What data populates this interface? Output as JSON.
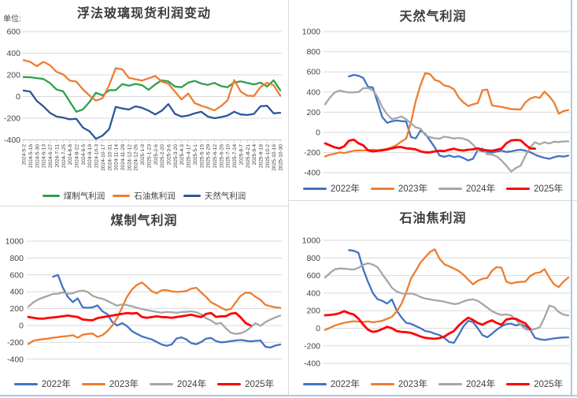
{
  "chart_data": [
    {
      "id": "float-glass-spot-profit",
      "type": "line",
      "title": "浮法玻璃现货利润变动",
      "unit_label": "单位:",
      "ylim": [
        -400,
        600
      ],
      "y_ticks": [
        600,
        400,
        200,
        0,
        -200,
        -400
      ],
      "grid": true,
      "legend_position": "bottom",
      "x_labels": [
        "2024-5-2",
        "2024-5-16",
        "2024-5-30",
        "2024-6-13",
        "2024-6-27",
        "2024-7-11",
        "2024-7-25",
        "2024-8-8",
        "2024-8-22",
        "2024-9-5",
        "2024-9-19",
        "2024-10-3",
        "2024-10-17",
        "2024-10-31",
        "2024-11-14",
        "2024-11-28",
        "2024-12-12",
        "2024-12-26",
        "2025-1-9",
        "2025-1-23",
        "2025-2-6",
        "2025-2-20",
        "2025-3-6",
        "2025-3-20",
        "2025-4-3",
        "2025-4-17",
        "2025-5-1",
        "2025-5-15",
        "2025-5-29",
        "2025-6-12",
        "2025-6-26",
        "2025-7-10",
        "2025-7-24",
        "2025-8-7",
        "2025-8-21",
        "2025-9-4",
        "2025-9-18",
        "2025-10-2",
        "2025-10-16",
        "2025-10-30"
      ],
      "series": [
        {
          "name": "煤制气利润",
          "color": "#2EA04D",
          "values": [
            180,
            178,
            170,
            162,
            125,
            65,
            48,
            -45,
            -140,
            -120,
            -50,
            35,
            10,
            58,
            60,
            115,
            100,
            116,
            105,
            62,
            112,
            150,
            140,
            92,
            86,
            128,
            145,
            120,
            108,
            126,
            96,
            86,
            130,
            140,
            126,
            112,
            128,
            92,
            150,
            58
          ]
        },
        {
          "name": "石油焦利润",
          "color": "#ED7D31",
          "values": [
            335,
            320,
            280,
            320,
            290,
            228,
            205,
            148,
            138,
            68,
            10,
            -38,
            -15,
            105,
            262,
            250,
            172,
            160,
            148,
            168,
            190,
            138,
            118,
            45,
            -28,
            28,
            -60,
            -85,
            -105,
            -128,
            -88,
            -35,
            152,
            45,
            8,
            5,
            88,
            128,
            105,
            8
          ]
        },
        {
          "name": "天然气利润",
          "color": "#2F5597",
          "values": [
            55,
            45,
            -40,
            -90,
            -150,
            -185,
            -195,
            -210,
            -205,
            -285,
            -320,
            -390,
            -360,
            -300,
            -95,
            -110,
            -120,
            -90,
            -105,
            -130,
            -165,
            -130,
            -70,
            -160,
            -185,
            -175,
            -155,
            -140,
            -185,
            -200,
            -190,
            -175,
            -140,
            -165,
            -170,
            -160,
            -90,
            -85,
            -155,
            -150
          ]
        }
      ]
    },
    {
      "id": "natural-gas-profit",
      "type": "line",
      "title": "天然气利润",
      "ylim": [
        -400,
        1000
      ],
      "y_ticks": [
        1000,
        800,
        600,
        400,
        200,
        0,
        -200,
        -400
      ],
      "grid": true,
      "legend_position": "bottom",
      "series": [
        {
          "name": "2022年",
          "color": "#4472C4",
          "values": [
            null,
            null,
            null,
            null,
            null,
            555,
            570,
            562,
            540,
            452,
            445,
            300,
            150,
            95,
            110,
            118,
            112,
            108,
            -45,
            -60,
            18,
            -15,
            -80,
            -150,
            -230,
            -242,
            -228,
            -244,
            -236,
            -254,
            -278,
            -262,
            -175,
            -185,
            -195,
            -200,
            -190,
            -182,
            -194,
            -188,
            -178,
            -172,
            -182,
            -195,
            -220,
            -238,
            -252,
            -262,
            -246,
            -234,
            -240,
            -230
          ]
        },
        {
          "name": "2023年",
          "color": "#ED7D31",
          "values": [
            -238,
            -220,
            -212,
            -198,
            -205,
            -192,
            -182,
            -178,
            -180,
            -176,
            -172,
            -178,
            -170,
            -162,
            -148,
            -125,
            -90,
            -62,
            100,
            310,
            470,
            588,
            578,
            520,
            505,
            465,
            455,
            428,
            348,
            298,
            262,
            278,
            290,
            418,
            425,
            268,
            260,
            252,
            242,
            232,
            228,
            228,
            298,
            335,
            352,
            342,
            405,
            358,
            298,
            185,
            212,
            222
          ]
        },
        {
          "name": "2024年",
          "color": "#A6A6A6",
          "values": [
            278,
            345,
            395,
            415,
            405,
            395,
            398,
            400,
            438,
            440,
            418,
            352,
            248,
            180,
            132,
            142,
            158,
            130,
            90,
            50,
            38,
            -28,
            -48,
            -58,
            -62,
            -42,
            -50,
            -60,
            -55,
            -62,
            -80,
            -120,
            -178,
            -158,
            -218,
            -220,
            -238,
            -278,
            -330,
            -388,
            -352,
            -330,
            -232,
            -148,
            -98,
            -118,
            -98,
            -110,
            -92,
            -95,
            -90,
            -88
          ]
        },
        {
          "name": "2025年",
          "color": "#FF0000",
          "values": [
            -108,
            -128,
            -148,
            -158,
            -138,
            -82,
            -72,
            -108,
            -128,
            -178,
            -188,
            -182,
            -178,
            -170,
            -158,
            -148,
            -145,
            -158,
            -162,
            -168,
            -188,
            -198,
            -198,
            -188,
            -182,
            -185,
            -172,
            -162,
            -175,
            -180,
            -172,
            -168,
            -158,
            -172,
            -178,
            -182,
            -172,
            -162,
            -108,
            -80,
            -75,
            -78,
            -122,
            -158,
            -162,
            null,
            null,
            null,
            null,
            null,
            null,
            null
          ]
        }
      ]
    },
    {
      "id": "coal-gas-profit",
      "type": "line",
      "title": "煤制气利润",
      "ylim": [
        -400,
        1000
      ],
      "y_ticks": [
        1000,
        800,
        600,
        400,
        200,
        0,
        -200,
        -400
      ],
      "grid": true,
      "legend_position": "bottom",
      "series": [
        {
          "name": "2022年",
          "color": "#4472C4",
          "values": [
            null,
            null,
            null,
            null,
            null,
            578,
            600,
            448,
            338,
            278,
            322,
            215,
            210,
            215,
            238,
            168,
            135,
            40,
            0,
            28,
            -8,
            -68,
            -100,
            -130,
            -148,
            -165,
            -195,
            -225,
            -240,
            -225,
            -155,
            -140,
            -165,
            -210,
            -222,
            -195,
            -155,
            -148,
            -185,
            -200,
            -195,
            -185,
            -178,
            -172,
            -180,
            -188,
            -182,
            -178,
            -252,
            -262,
            -238,
            -225
          ]
        },
        {
          "name": "2023年",
          "color": "#ED7D31",
          "values": [
            -220,
            -180,
            -170,
            -162,
            -155,
            -145,
            -138,
            -130,
            -125,
            -115,
            -145,
            -110,
            -100,
            -95,
            -135,
            -115,
            -68,
            0,
            90,
            215,
            342,
            428,
            482,
            510,
            460,
            405,
            382,
            418,
            420,
            405,
            398,
            402,
            408,
            438,
            448,
            392,
            338,
            275,
            245,
            212,
            182,
            195,
            275,
            352,
            390,
            385,
            340,
            305,
            245,
            228,
            215,
            210
          ]
        },
        {
          "name": "2024年",
          "color": "#A6A6A6",
          "values": [
            222,
            275,
            308,
            332,
            352,
            375,
            378,
            392,
            378,
            382,
            405,
            415,
            398,
            352,
            330,
            318,
            292,
            262,
            235,
            250,
            240,
            228,
            210,
            195,
            182,
            172,
            162,
            152,
            160,
            158,
            150,
            160,
            162,
            168,
            158,
            132,
            85,
            60,
            20,
            30,
            -35,
            -85,
            -100,
            -92,
            -68,
            -22,
            28,
            -5,
            40,
            70,
            95,
            118
          ]
        },
        {
          "name": "2025年",
          "color": "#FF0000",
          "values": [
            102,
            92,
            82,
            80,
            90,
            95,
            102,
            110,
            118,
            108,
            100,
            72,
            65,
            62,
            88,
            98,
            108,
            118,
            128,
            138,
            148,
            142,
            148,
            102,
            92,
            100,
            108,
            100,
            98,
            92,
            100,
            108,
            118,
            128,
            112,
            100,
            138,
            148,
            102,
            108,
            110,
            140,
            148,
            95,
            28,
            0,
            null,
            null,
            null,
            null,
            null,
            null
          ]
        }
      ]
    },
    {
      "id": "petroleum-coke-profit",
      "type": "line",
      "title": "石油焦利润",
      "ylim": [
        -400,
        1000
      ],
      "y_ticks": [
        1000,
        800,
        600,
        400,
        200,
        0,
        -200,
        -400
      ],
      "grid": true,
      "legend_position": "bottom",
      "series": [
        {
          "name": "2022年",
          "color": "#4472C4",
          "values": [
            null,
            null,
            null,
            null,
            null,
            890,
            882,
            858,
            670,
            528,
            402,
            330,
            312,
            281,
            328,
            203,
            125,
            62,
            50,
            25,
            0,
            -31,
            -41,
            -62,
            -78,
            -109,
            -156,
            -166,
            -78,
            20,
            84,
            72,
            0,
            -78,
            -103,
            -62,
            -16,
            22,
            47,
            53,
            31,
            47,
            22,
            -16,
            -109,
            -125,
            -134,
            -125,
            -116,
            -109,
            -105,
            -103
          ]
        },
        {
          "name": "2023年",
          "color": "#ED7D31",
          "values": [
            -20,
            5,
            30,
            48,
            62,
            72,
            80,
            75,
            72,
            78,
            68,
            75,
            85,
            108,
            130,
            190,
            275,
            408,
            565,
            652,
            748,
            808,
            868,
            898,
            790,
            728,
            705,
            680,
            652,
            609,
            553,
            500,
            541,
            562,
            572,
            656,
            697,
            688,
            531,
            509,
            522,
            528,
            531,
            594,
            625,
            634,
            672,
            578,
            500,
            469,
            531,
            578
          ]
        },
        {
          "name": "2024年",
          "color": "#A6A6A6",
          "values": [
            578,
            628,
            670,
            680,
            678,
            672,
            668,
            688,
            722,
            740,
            725,
            695,
            615,
            540,
            462,
            418,
            398,
            390,
            396,
            382,
            355,
            338,
            328,
            318,
            312,
            302,
            288,
            275,
            282,
            305,
            322,
            330,
            312,
            275,
            235,
            195,
            168,
            152,
            158,
            145,
            95,
            40,
            -10,
            -22,
            -8,
            10,
            120,
            258,
            240,
            185,
            155,
            145
          ]
        },
        {
          "name": "2025年",
          "color": "#FF0000",
          "values": [
            148,
            152,
            158,
            170,
            195,
            172,
            156,
            109,
            40,
            -16,
            -41,
            -31,
            -9,
            16,
            0,
            -31,
            -41,
            -45,
            -53,
            -72,
            -94,
            -109,
            -116,
            -120,
            -112,
            -95,
            -60,
            -31,
            30,
            80,
            120,
            95,
            60,
            40,
            70,
            90,
            60,
            40,
            100,
            110,
            108,
            80,
            55,
            -10,
            null,
            null,
            null,
            null,
            null,
            null,
            null,
            null
          ]
        }
      ]
    }
  ]
}
